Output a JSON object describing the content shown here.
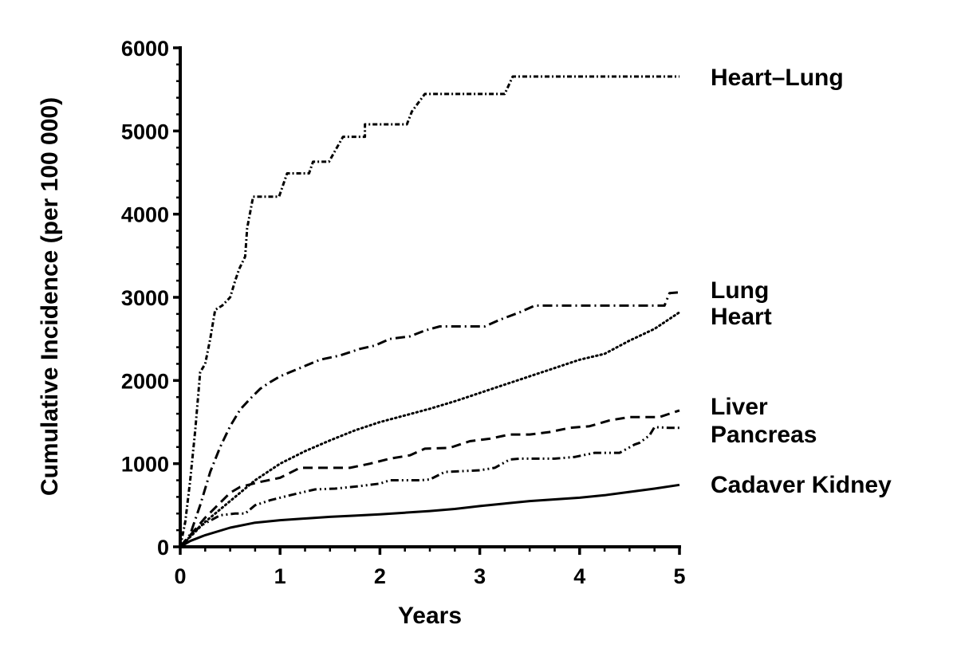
{
  "chart_data": {
    "type": "line",
    "title": "",
    "xlabel": "Years",
    "ylabel": "Cumulative Incidence (per 100 000)",
    "xlim": [
      0,
      5
    ],
    "ylim": [
      0,
      6000
    ],
    "x_ticks": [
      "0",
      "1",
      "2",
      "3",
      "4",
      "5"
    ],
    "y_ticks": [
      "0",
      "1000",
      "2000",
      "3000",
      "4000",
      "5000",
      "6000"
    ],
    "grid": false,
    "legend": "direct labels at right end of each line",
    "series": [
      {
        "name": "Heart–Lung",
        "style": "dash-dot-dot-fine",
        "x": [
          0,
          0.05,
          0.1,
          0.15,
          0.2,
          0.25,
          0.3,
          0.35,
          0.42,
          0.5,
          0.55,
          0.59,
          0.65,
          0.67,
          0.73,
          0.99,
          1.07,
          1.29,
          1.33,
          1.49,
          1.63,
          1.85,
          1.85,
          2.27,
          2.32,
          2.45,
          3.25,
          3.33,
          5.0
        ],
        "y": [
          0,
          300,
          800,
          1400,
          2100,
          2200,
          2500,
          2850,
          2900,
          3000,
          3200,
          3340,
          3490,
          3830,
          4210,
          4210,
          4490,
          4490,
          4630,
          4630,
          4930,
          4930,
          5080,
          5080,
          5235,
          5445,
          5445,
          5655,
          5655
        ]
      },
      {
        "name": "Lung",
        "style": "dash-dot",
        "x": [
          0,
          0.1,
          0.2,
          0.3,
          0.4,
          0.5,
          0.6,
          0.7,
          0.8,
          0.9,
          1.0,
          1.1,
          1.2,
          1.4,
          1.6,
          1.8,
          1.95,
          2.1,
          2.3,
          2.45,
          2.6,
          2.8,
          3.05,
          3.2,
          3.4,
          3.55,
          4.0,
          4.6,
          4.85,
          4.9,
          5.0
        ],
        "y": [
          0,
          150,
          500,
          900,
          1200,
          1450,
          1650,
          1780,
          1900,
          1980,
          2050,
          2100,
          2150,
          2250,
          2300,
          2380,
          2420,
          2500,
          2530,
          2600,
          2650,
          2650,
          2650,
          2730,
          2820,
          2900,
          2900,
          2900,
          2900,
          3050,
          3060
        ]
      },
      {
        "name": "Heart",
        "style": "dotted",
        "x": [
          0,
          0.25,
          0.5,
          0.75,
          1.0,
          1.25,
          1.5,
          1.75,
          2.0,
          2.25,
          2.5,
          2.75,
          3.0,
          3.25,
          3.5,
          3.75,
          4.0,
          4.25,
          4.5,
          4.75,
          5.0
        ],
        "y": [
          0,
          300,
          550,
          800,
          1000,
          1150,
          1280,
          1400,
          1500,
          1580,
          1660,
          1750,
          1850,
          1950,
          2050,
          2150,
          2250,
          2320,
          2480,
          2620,
          2820
        ]
      },
      {
        "name": "Liver",
        "style": "dashed",
        "x": [
          0,
          0.25,
          0.5,
          0.6,
          0.8,
          1.0,
          1.2,
          1.5,
          1.7,
          1.9,
          2.1,
          2.3,
          2.45,
          2.7,
          2.9,
          3.1,
          3.3,
          3.5,
          3.7,
          3.9,
          4.1,
          4.3,
          4.5,
          4.8,
          5.0
        ],
        "y": [
          0,
          350,
          650,
          720,
          780,
          830,
          950,
          950,
          950,
          1000,
          1060,
          1100,
          1180,
          1190,
          1270,
          1300,
          1350,
          1350,
          1380,
          1430,
          1450,
          1520,
          1560,
          1560,
          1640
        ]
      },
      {
        "name": "Pancreas",
        "style": "dash-dot-dot",
        "x": [
          0,
          0.2,
          0.4,
          0.55,
          0.65,
          0.75,
          0.9,
          1.1,
          1.35,
          1.55,
          1.8,
          2.0,
          2.1,
          2.4,
          2.5,
          2.65,
          3.0,
          3.15,
          3.3,
          3.4,
          3.75,
          3.95,
          4.15,
          4.4,
          4.55,
          4.6,
          4.7,
          4.75,
          4.9,
          5.0
        ],
        "y": [
          0,
          250,
          380,
          400,
          400,
          500,
          560,
          620,
          690,
          700,
          730,
          760,
          800,
          800,
          810,
          900,
          920,
          950,
          1050,
          1060,
          1060,
          1080,
          1130,
          1130,
          1230,
          1250,
          1340,
          1440,
          1430,
          1430
        ]
      },
      {
        "name": "Cadaver Kidney",
        "style": "solid",
        "x": [
          0,
          0.1,
          0.25,
          0.5,
          0.75,
          1.0,
          1.25,
          1.5,
          1.75,
          2.0,
          2.25,
          2.5,
          2.75,
          3.0,
          3.25,
          3.5,
          3.75,
          4.0,
          4.25,
          4.5,
          4.75,
          5.0
        ],
        "y": [
          0,
          70,
          140,
          230,
          290,
          320,
          340,
          360,
          375,
          390,
          410,
          430,
          455,
          490,
          520,
          550,
          570,
          590,
          620,
          660,
          700,
          745
        ]
      }
    ]
  }
}
